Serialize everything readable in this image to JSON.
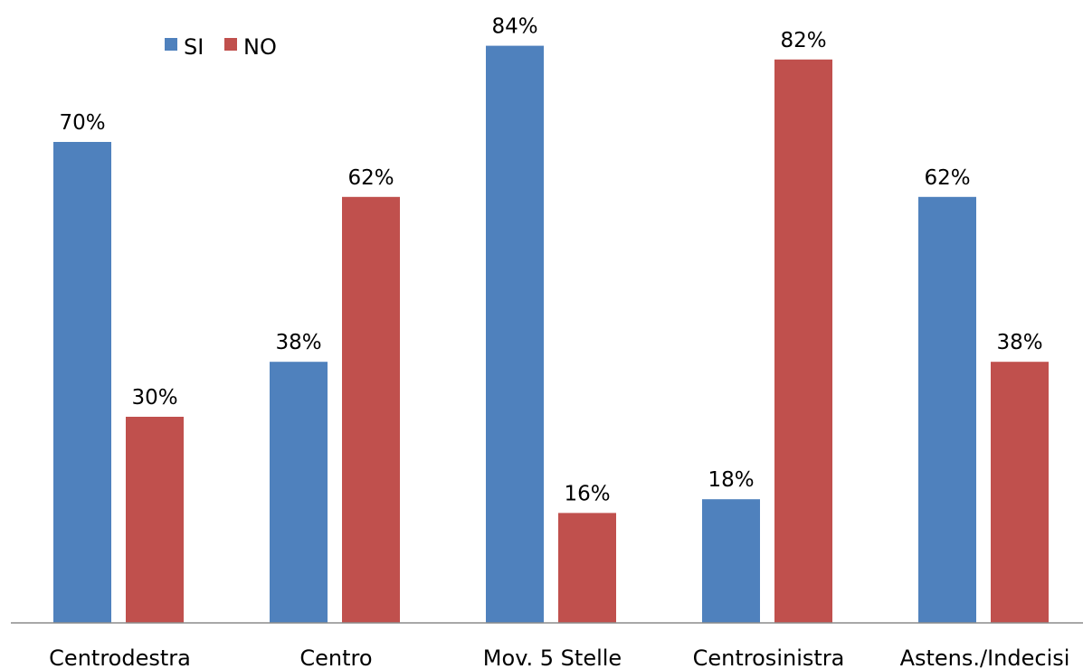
{
  "chart_data": {
    "type": "bar",
    "title": "",
    "xlabel": "",
    "ylabel": "",
    "categories": [
      "Centrodestra",
      "Centro",
      "Mov. 5 Stelle",
      "Centrosinistra",
      "Astens./Indecisi"
    ],
    "series": [
      {
        "name": "SI",
        "color": "#4f81bd",
        "values": [
          70,
          38,
          84,
          18,
          62
        ],
        "labels": [
          "70%",
          "38%",
          "84%",
          "18%",
          "62%"
        ]
      },
      {
        "name": "NO",
        "color": "#c0504d",
        "values": [
          30,
          62,
          16,
          82,
          38
        ],
        "labels": [
          "30%",
          "62%",
          "16%",
          "82%",
          "38%"
        ]
      }
    ],
    "ylim": [
      0,
      90
    ],
    "grid": false,
    "legend": "top-left"
  }
}
